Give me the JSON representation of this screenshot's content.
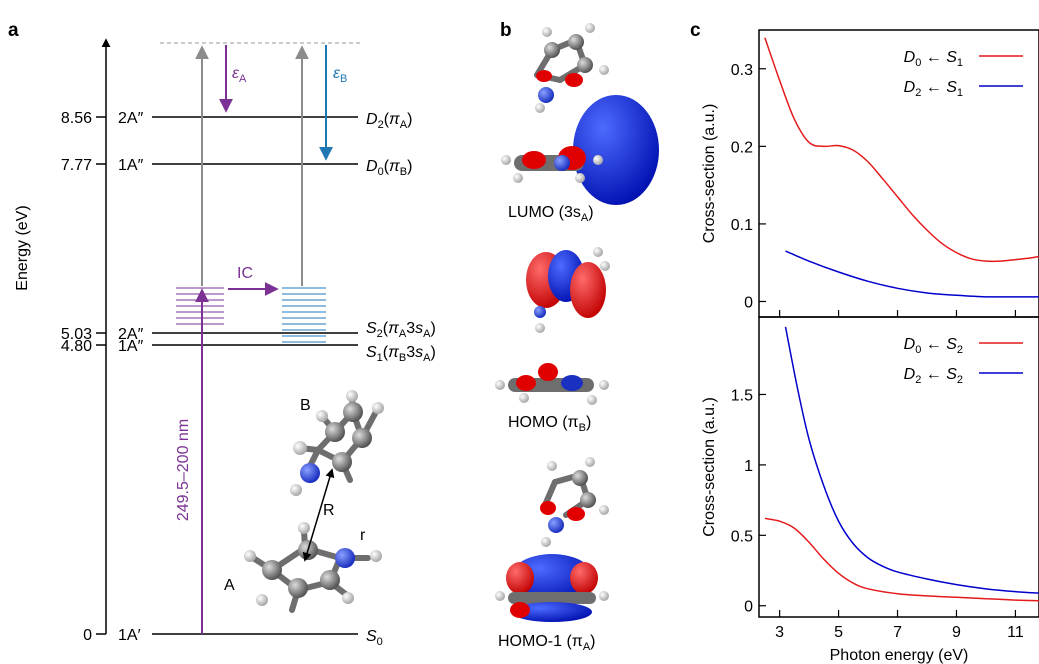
{
  "panels": {
    "a": {
      "label": "a",
      "axis_label": "Energy (eV)",
      "levels": [
        {
          "energy": "8.56",
          "symmetry": "2A″",
          "state": "D",
          "sub": "2",
          "orbital": "π",
          "orb_sub": "A",
          "tail": ")"
        },
        {
          "energy": "7.77",
          "symmetry": "1A″",
          "state": "D",
          "sub": "0",
          "orbital": "π",
          "orb_sub": "B",
          "tail": ")"
        },
        {
          "energy": "5.03",
          "symmetry": "2A″",
          "state": "S",
          "sub": "2",
          "orbital": "π",
          "orb_sub": "A",
          "extra": "3s",
          "extra_sub": "A",
          "tail": ")"
        },
        {
          "energy": "4.80",
          "symmetry": "1A″",
          "state": "S",
          "sub": "1",
          "orbital": "π",
          "orb_sub": "B",
          "extra": "3s",
          "extra_sub": "A",
          "tail": ")"
        },
        {
          "energy": "0",
          "symmetry": "1A′",
          "state": "S",
          "sub": "0"
        }
      ],
      "epsilon_a": {
        "symbol": "ε",
        "sub": "A"
      },
      "epsilon_b": {
        "symbol": "ε",
        "sub": "B"
      },
      "ic_label": "IC",
      "pump_label": "249.5–200 nm",
      "molecule_labels": {
        "ring_b": "B",
        "ring_a": "A",
        "distance": "R",
        "bond": "r"
      },
      "colors": {
        "purple": "#7b3294",
        "blue": "#1f78b4",
        "grey": "#8c8c8c"
      }
    },
    "b": {
      "label": "b",
      "orbitals": [
        {
          "name": "LUMO (3s",
          "sub": "A",
          "tail": ")"
        },
        {
          "name": "HOMO (π",
          "sub": "B",
          "tail": ")"
        },
        {
          "name": "HOMO-1 (π",
          "sub": "A",
          "tail": ")"
        }
      ]
    },
    "c": {
      "label": "c",
      "xlabel": "Photon energy (eV)"
    }
  },
  "chart_data": [
    {
      "type": "line",
      "ylabel": "Cross-section (a.u.)",
      "xlim": [
        2.3,
        11.8
      ],
      "ylim": [
        -0.02,
        0.35
      ],
      "yticks": [
        "0",
        "0.1",
        "0.2",
        "0.3"
      ],
      "xticks": [
        "3",
        "5",
        "7",
        "9",
        "11"
      ],
      "legend_position": "top-right",
      "series": [
        {
          "name": "D0 ← S1",
          "label": {
            "a": "D",
            "a_sub": "0",
            "arrow": " ← ",
            "b": "S",
            "b_sub": "1"
          },
          "color": "#e41a1c",
          "x": [
            2.5,
            3.0,
            3.5,
            4.0,
            4.5,
            5.0,
            5.5,
            6.0,
            6.5,
            7.0,
            7.5,
            8.0,
            8.5,
            9.0,
            9.5,
            10.0,
            10.5,
            11.0,
            11.5,
            11.8
          ],
          "y": [
            0.34,
            0.285,
            0.235,
            0.205,
            0.2,
            0.201,
            0.195,
            0.18,
            0.158,
            0.135,
            0.112,
            0.092,
            0.075,
            0.063,
            0.055,
            0.052,
            0.052,
            0.054,
            0.056,
            0.058
          ]
        },
        {
          "name": "D2 ← S1",
          "label": {
            "a": "D",
            "a_sub": "2",
            "arrow": " ← ",
            "b": "S",
            "b_sub": "1"
          },
          "color": "#0000cc",
          "x": [
            3.2,
            4.0,
            5.0,
            6.0,
            7.0,
            8.0,
            9.0,
            10.0,
            11.0,
            11.8
          ],
          "y": [
            0.065,
            0.052,
            0.038,
            0.026,
            0.017,
            0.011,
            0.008,
            0.006,
            0.006,
            0.006
          ]
        }
      ]
    },
    {
      "type": "line",
      "ylabel": "Cross-section (a.u.)",
      "xlim": [
        2.3,
        11.8
      ],
      "ylim": [
        -0.08,
        2.05
      ],
      "yticks": [
        "0",
        "0.5",
        "1",
        "1.5"
      ],
      "xticks": [
        "3",
        "5",
        "7",
        "9",
        "11"
      ],
      "legend_position": "top-right",
      "series": [
        {
          "name": "D0 ← S2",
          "label": {
            "a": "D",
            "a_sub": "0",
            "arrow": " ← ",
            "b": "S",
            "b_sub": "2"
          },
          "color": "#e41a1c",
          "x": [
            2.5,
            3.0,
            3.5,
            4.0,
            4.5,
            5.0,
            5.5,
            6.0,
            7.0,
            8.0,
            9.0,
            10.0,
            11.0,
            11.8
          ],
          "y": [
            0.62,
            0.6,
            0.55,
            0.45,
            0.33,
            0.23,
            0.16,
            0.12,
            0.085,
            0.07,
            0.06,
            0.05,
            0.04,
            0.035
          ]
        },
        {
          "name": "D2 ← S2",
          "label": {
            "a": "D",
            "a_sub": "2",
            "arrow": " ← ",
            "b": "S",
            "b_sub": "2"
          },
          "color": "#0000cc",
          "x": [
            3.2,
            3.6,
            4.0,
            4.5,
            5.0,
            5.5,
            6.0,
            6.5,
            7.0,
            8.0,
            9.0,
            10.0,
            11.0,
            11.8
          ],
          "y": [
            1.98,
            1.55,
            1.18,
            0.85,
            0.6,
            0.44,
            0.34,
            0.28,
            0.24,
            0.19,
            0.15,
            0.12,
            0.1,
            0.09
          ]
        }
      ]
    }
  ]
}
